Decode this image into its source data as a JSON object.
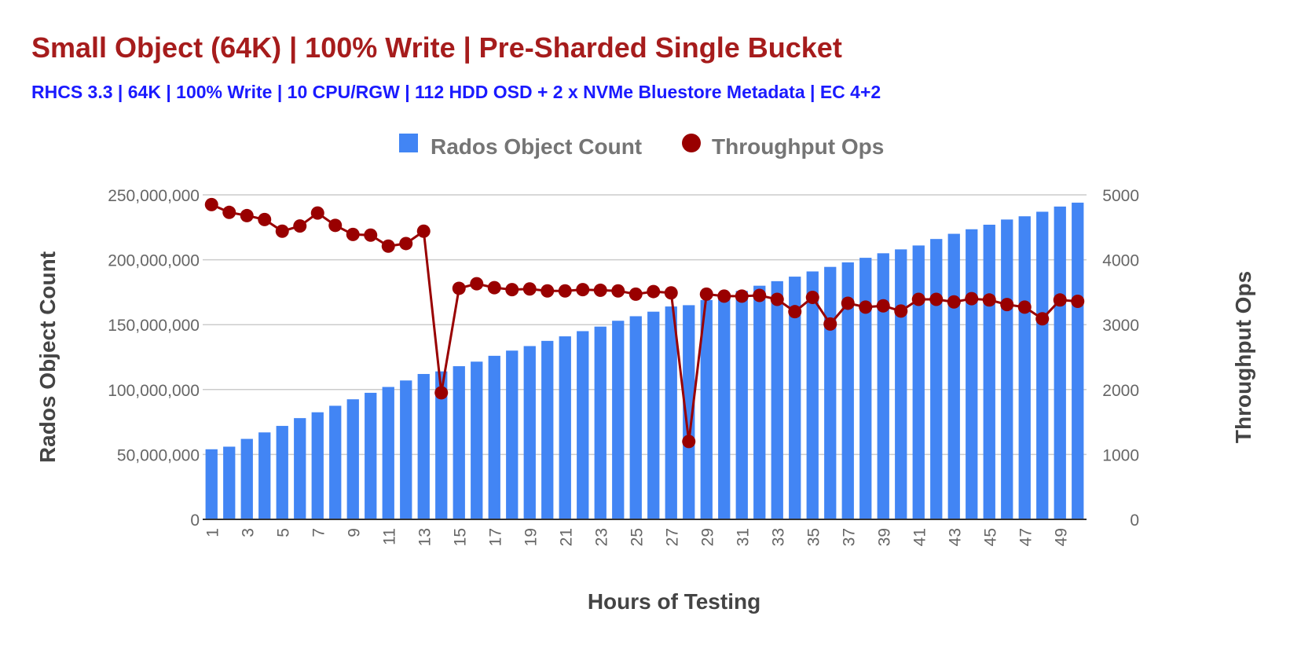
{
  "chart_data": {
    "type": "bar",
    "title": "Small Object (64K) | 100% Write | Pre-Sharded Single Bucket",
    "subtitle": "RHCS 3.3 | 64K | 100% Write | 10 CPU/RGW | 112 HDD OSD + 2 x NVMe Bluestore Metadata | EC 4+2",
    "xlabel": "Hours of Testing",
    "ylabel": "Rados Object Count",
    "y2label": "Throughput Ops",
    "ylim": [
      0,
      250000000
    ],
    "y2lim": [
      0,
      5000
    ],
    "yticks": [
      "0",
      "50,000,000",
      "100,000,000",
      "150,000,000",
      "200,000,000",
      "250,000,000"
    ],
    "y2ticks": [
      "0",
      "1000",
      "2000",
      "3000",
      "4000",
      "5000"
    ],
    "xticks": [
      "1",
      "3",
      "5",
      "7",
      "9",
      "11",
      "13",
      "15",
      "17",
      "19",
      "21",
      "23",
      "25",
      "27",
      "29",
      "31",
      "33",
      "35",
      "37",
      "39",
      "41",
      "43",
      "45",
      "47",
      "49"
    ],
    "legend_position": "top",
    "grid": true,
    "categories": [
      1,
      2,
      3,
      4,
      5,
      6,
      7,
      8,
      9,
      10,
      11,
      12,
      13,
      14,
      15,
      16,
      17,
      18,
      19,
      20,
      21,
      22,
      23,
      24,
      25,
      26,
      27,
      28,
      29,
      30,
      31,
      32,
      33,
      34,
      35,
      36,
      37,
      38,
      39,
      40,
      41,
      42,
      43,
      44,
      45,
      46,
      47,
      48,
      49,
      50
    ],
    "series": [
      {
        "name": "Rados Object Count",
        "type": "bar",
        "axis": "left",
        "color": "#4285f4",
        "values": [
          54000000,
          56000000,
          62000000,
          67000000,
          72000000,
          78000000,
          82500000,
          87500000,
          92500000,
          97500000,
          102000000,
          107000000,
          112000000,
          114000000,
          118000000,
          121500000,
          126000000,
          130000000,
          133500000,
          137500000,
          141000000,
          145000000,
          148500000,
          153000000,
          156500000,
          160000000,
          164000000,
          165000000,
          169000000,
          172000000,
          176000000,
          180000000,
          183500000,
          187000000,
          191000000,
          194500000,
          198000000,
          201500000,
          205000000,
          208000000,
          211000000,
          216000000,
          220000000,
          223500000,
          227000000,
          231000000,
          233500000,
          237000000,
          241000000,
          244000000
        ]
      },
      {
        "name": "Throughput Ops",
        "type": "line",
        "axis": "right",
        "color": "#990000",
        "values": [
          4850,
          4730,
          4680,
          4620,
          4440,
          4520,
          4720,
          4530,
          4390,
          4380,
          4210,
          4250,
          4440,
          1950,
          3560,
          3630,
          3570,
          3540,
          3550,
          3520,
          3520,
          3540,
          3530,
          3520,
          3470,
          3510,
          3490,
          1200,
          3470,
          3440,
          3440,
          3450,
          3390,
          3200,
          3420,
          3010,
          3330,
          3270,
          3290,
          3210,
          3390,
          3390,
          3350,
          3400,
          3380,
          3310,
          3270,
          3090,
          3380,
          3360
        ]
      }
    ]
  }
}
